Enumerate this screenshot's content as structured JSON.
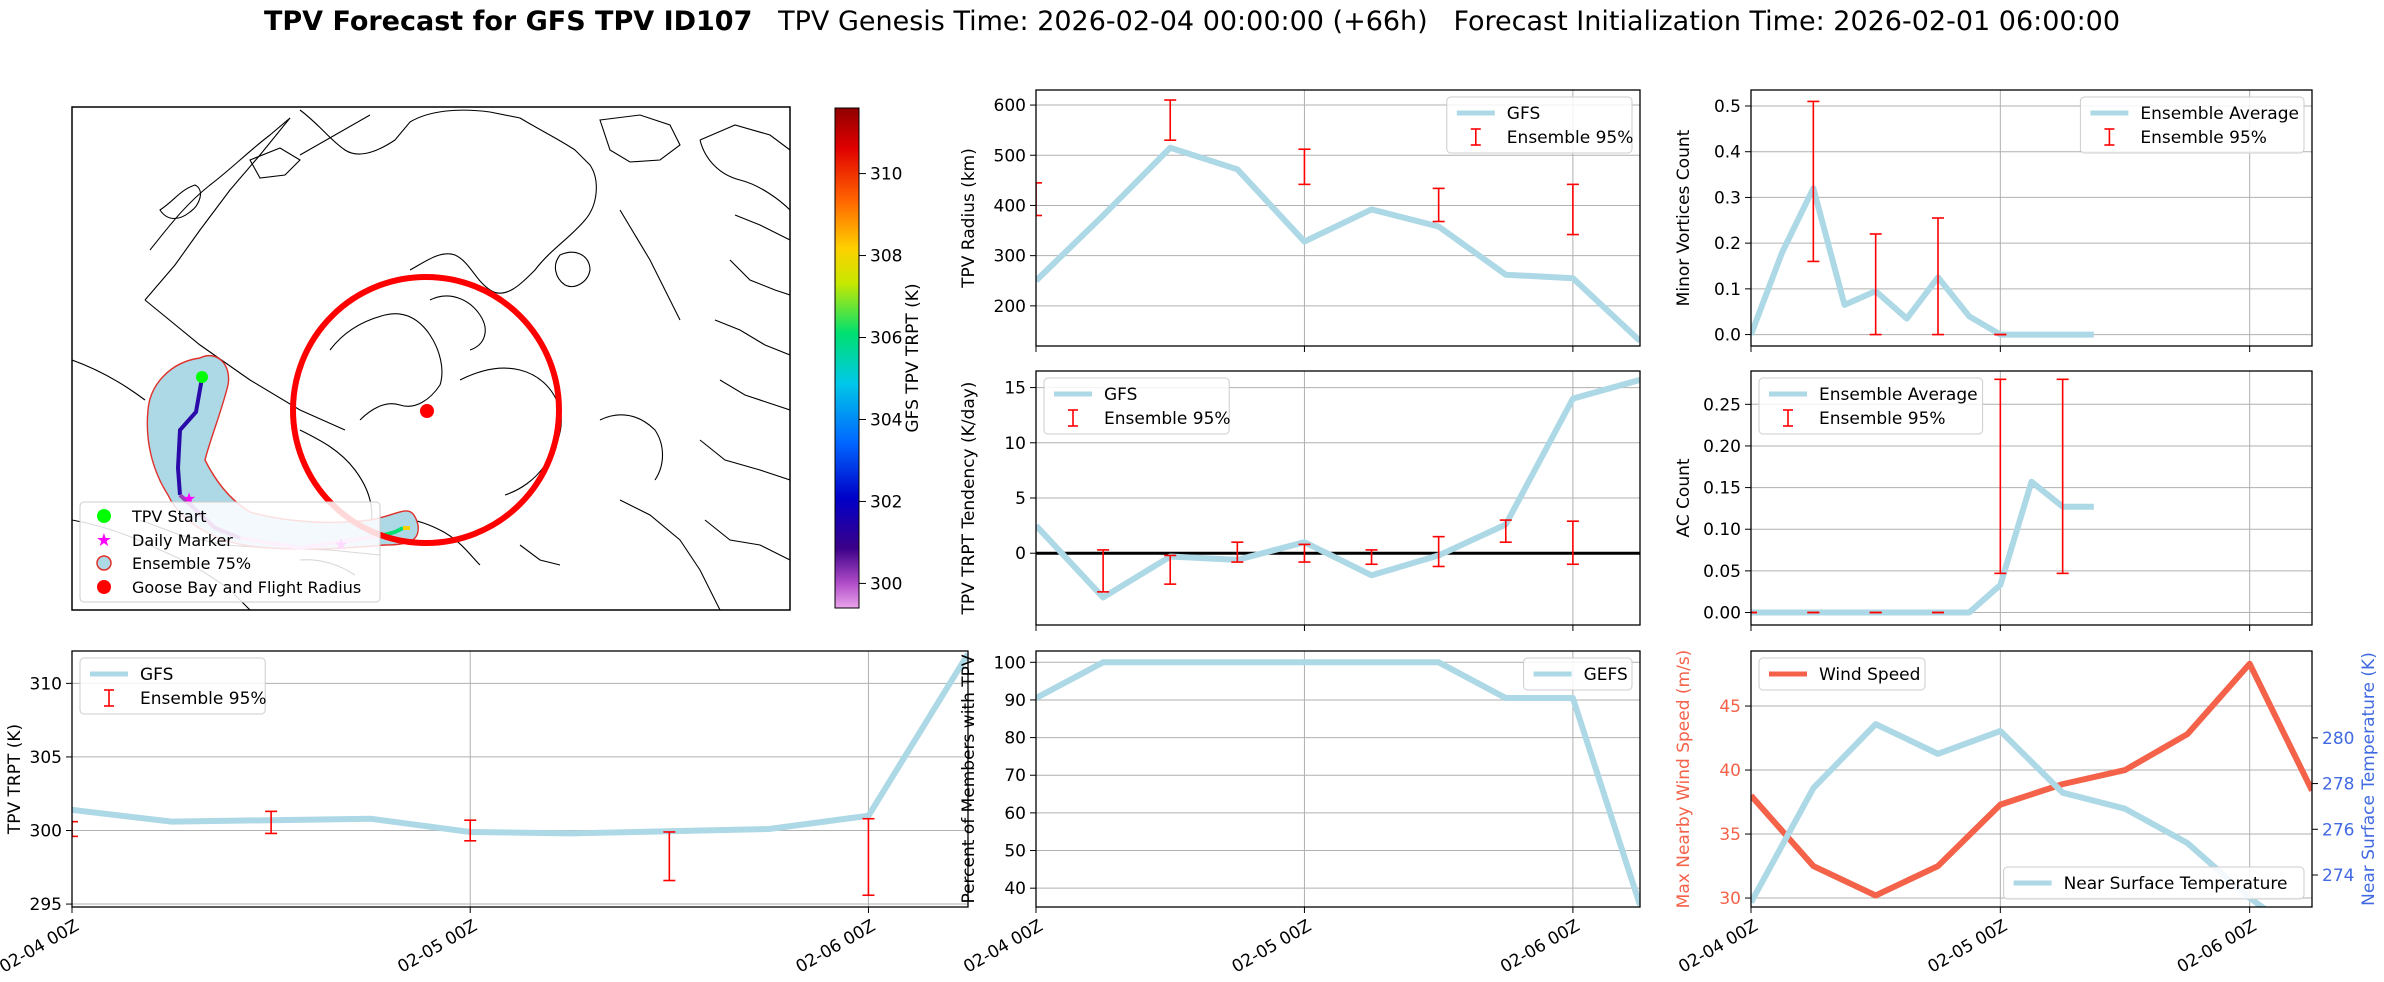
{
  "title": {
    "bold": "TPV Forecast for GFS TPV ID107",
    "genesis": "TPV Genesis Time: 2026-02-04 00:00:00 (+66h)",
    "init": "Forecast Initialization Time: 2026-02-01 06:00:00"
  },
  "map": {
    "colorbar_label": "GFS TPV TRPT (K)",
    "colorbar_ticks": [
      300,
      302,
      304,
      306,
      308,
      310
    ],
    "colorbar_range": [
      299.4,
      311.6
    ],
    "legend": [
      "TPV Start",
      "Daily Marker",
      "Ensemble 75%",
      "Goose Bay and Flight Radius"
    ],
    "colors": {
      "start": "#00ff00",
      "daily": "#ff00ff",
      "ensemble_fill": "#add8e6",
      "ensemble_edge": "#e0302a",
      "goose": "#ff0000"
    }
  },
  "colors": {
    "gfs": "#add8e6",
    "err": "#ff0000",
    "wind": "#f4624a",
    "temp_axis": "#4169e1"
  },
  "chart_data": [
    {
      "id": "radius",
      "type": "line",
      "ylabel": "TPV Radius (km)",
      "ylim": [
        120,
        630
      ],
      "yticks": [
        200,
        300,
        400,
        500,
        600
      ],
      "x": [
        0,
        6,
        12,
        18,
        24,
        30,
        36,
        42,
        48,
        54
      ],
      "series": [
        {
          "name": "GFS",
          "values": [
            250,
            380,
            515,
            472,
            328,
            392,
            358,
            262,
            255,
            130
          ]
        }
      ],
      "errorbars": {
        "name": "Ensemble 95%",
        "x": [
          0,
          12,
          24,
          36,
          48
        ],
        "low": [
          380,
          530,
          442,
          368,
          342
        ],
        "high": [
          445,
          610,
          512,
          434,
          442
        ]
      },
      "legend": "top-right"
    },
    {
      "id": "minor",
      "type": "line",
      "ylabel": "Minor Vortices Count",
      "ylim": [
        -0.025,
        0.535
      ],
      "yticks": [
        0.0,
        0.1,
        0.2,
        0.3,
        0.4,
        0.5
      ],
      "x": [
        0,
        3,
        6,
        9,
        12,
        15,
        18,
        21,
        24,
        27,
        30,
        33
      ],
      "series": [
        {
          "name": "Ensemble Average",
          "values": [
            0.0,
            0.18,
            0.32,
            0.065,
            0.095,
            0.035,
            0.125,
            0.04,
            0.0,
            0.0,
            0.0,
            0.0
          ]
        }
      ],
      "errorbars": {
        "name": "Ensemble 95%",
        "x": [
          6,
          12,
          18,
          24
        ],
        "low": [
          0.16,
          0.0,
          0.0,
          0.0
        ],
        "high": [
          0.51,
          0.22,
          0.255,
          0.0
        ]
      },
      "legend": "top-right"
    },
    {
      "id": "tend",
      "type": "line",
      "ylabel": "TPV TRPT Tendency (K/day)",
      "ylim": [
        -6.5,
        16.5
      ],
      "yticks": [
        0,
        5,
        10,
        15
      ],
      "x": [
        0,
        6,
        12,
        18,
        24,
        30,
        36,
        42,
        48,
        54
      ],
      "series": [
        {
          "name": "GFS",
          "values": [
            2.5,
            -4.0,
            -0.3,
            -0.6,
            1.0,
            -2.0,
            -0.2,
            2.6,
            14.0,
            15.7
          ]
        }
      ],
      "zero_line": true,
      "errorbars": {
        "name": "Ensemble 95%",
        "x": [
          6,
          12,
          18,
          24,
          30,
          36,
          42,
          48
        ],
        "low": [
          -3.5,
          -2.8,
          -0.8,
          -0.8,
          -1.0,
          -1.2,
          1.0,
          -1.0
        ],
        "high": [
          0.3,
          -0.2,
          1.0,
          0.8,
          0.3,
          1.5,
          3.0,
          2.9
        ]
      },
      "legend": "top-left"
    },
    {
      "id": "ac",
      "type": "line",
      "ylabel": "AC Count",
      "ylim": [
        -0.015,
        0.29
      ],
      "yticks": [
        0.0,
        0.05,
        0.1,
        0.15,
        0.2,
        0.25
      ],
      "x": [
        0,
        3,
        6,
        9,
        12,
        15,
        18,
        21,
        24,
        27,
        30,
        33
      ],
      "series": [
        {
          "name": "Ensemble Average",
          "values": [
            0,
            0,
            0,
            0,
            0,
            0,
            0,
            0,
            0.033,
            0.157,
            0.127,
            0.127
          ]
        }
      ],
      "errorbars": {
        "name": "Ensemble 95%",
        "x": [
          0,
          6,
          12,
          18,
          24,
          30
        ],
        "low": [
          0,
          0,
          0,
          0,
          0.047,
          0.047
        ],
        "high": [
          0,
          0,
          0,
          0,
          0.28,
          0.28
        ]
      },
      "legend": "top-left"
    },
    {
      "id": "trpt",
      "type": "line",
      "ylabel": "TPV TRPT (K)",
      "ylim": [
        294.8,
        312.2
      ],
      "yticks": [
        295,
        300,
        305,
        310
      ],
      "x": [
        0,
        6,
        12,
        18,
        24,
        30,
        36,
        42,
        48,
        54
      ],
      "series": [
        {
          "name": "GFS",
          "values": [
            301.4,
            300.6,
            300.7,
            300.8,
            299.9,
            299.8,
            299.95,
            300.1,
            301.0,
            312.0
          ]
        }
      ],
      "errorbars": {
        "name": "Ensemble 95%",
        "x": [
          0,
          12,
          24,
          36,
          48
        ],
        "low": [
          299.6,
          299.8,
          299.3,
          296.6,
          295.6
        ],
        "high": [
          300.6,
          301.3,
          300.7,
          299.9,
          300.8
        ]
      },
      "legend": "top-left"
    },
    {
      "id": "members",
      "type": "line",
      "ylabel": "Percent of Members with TPV",
      "ylim": [
        35,
        103
      ],
      "yticks": [
        40,
        50,
        60,
        70,
        80,
        90,
        100
      ],
      "x": [
        0,
        6,
        12,
        18,
        24,
        30,
        36,
        42,
        48,
        54
      ],
      "series": [
        {
          "name": "GEFS",
          "values": [
            90.5,
            100,
            100,
            100,
            100,
            100,
            100,
            90.5,
            90.5,
            35.5
          ]
        }
      ],
      "legend": "top-right"
    },
    {
      "id": "wind",
      "type": "line",
      "ylabel": "Max Nearby Wind Speed (m/s)",
      "ylabel2": "Near Surface Temperature (K)",
      "ylim": [
        29.3,
        49.3
      ],
      "yticks": [
        30,
        35,
        40,
        45
      ],
      "ylim2": [
        272.6,
        283.8
      ],
      "yticks2": [
        274,
        276,
        278,
        280
      ],
      "x": [
        0,
        6,
        12,
        18,
        24,
        30,
        36,
        42,
        48,
        54
      ],
      "series": [
        {
          "name": "Wind Speed",
          "values": [
            38.0,
            32.5,
            30.2,
            32.5,
            37.3,
            38.9,
            40.0,
            42.8,
            48.3,
            38.4
          ]
        }
      ],
      "series2": [
        {
          "name": "Near Surface Temperature",
          "values": [
            272.8,
            277.8,
            280.6,
            279.3,
            280.3,
            277.6,
            276.9,
            275.4,
            273.0,
            271.0
          ]
        }
      ],
      "legend": "top-left",
      "legend2": "bottom-right"
    }
  ],
  "xaxis": {
    "range": [
      0,
      54
    ],
    "ticks": [
      0,
      24,
      48
    ],
    "labels": [
      "02-04 00Z",
      "02-05 00Z",
      "02-06 00Z"
    ]
  }
}
